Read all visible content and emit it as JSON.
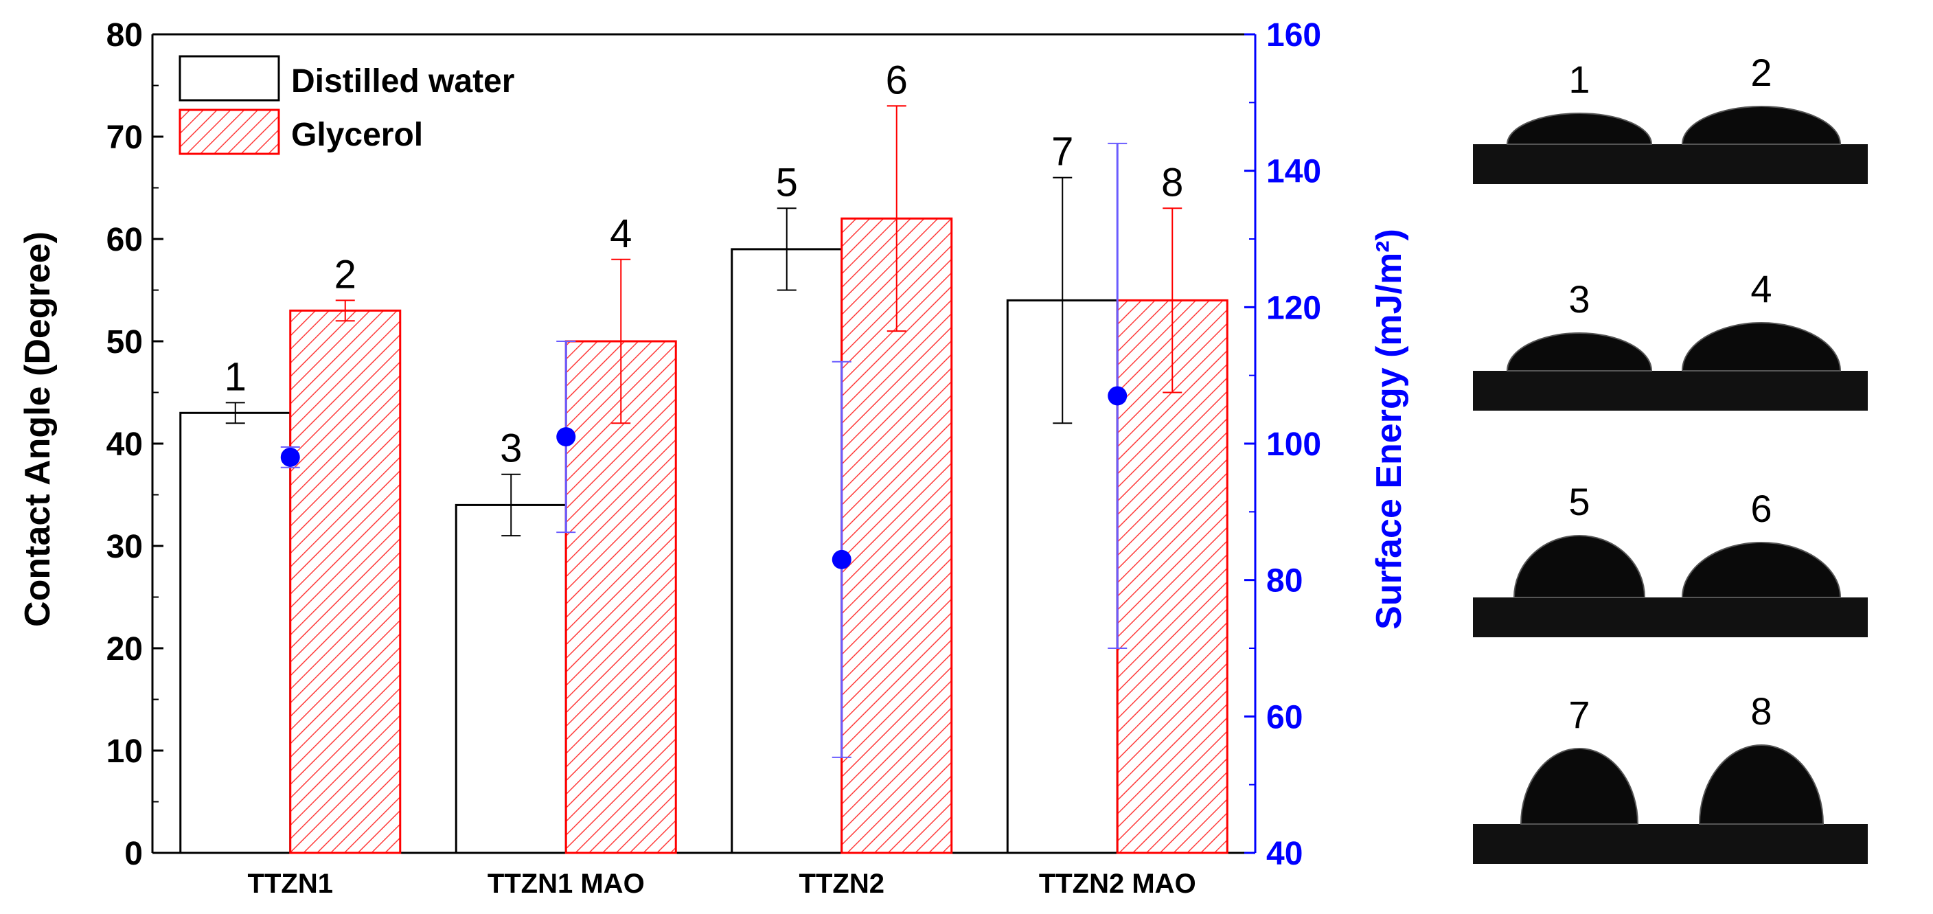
{
  "chart_data": {
    "type": "bar",
    "ylabel": "Contact Angle (Degree)",
    "y2label": "Surface Energy (mJ/m²)",
    "ylim": [
      0,
      80
    ],
    "y2lim": [
      40,
      160
    ],
    "yticks": [
      0,
      10,
      20,
      30,
      40,
      50,
      60,
      70,
      80
    ],
    "y2ticks": [
      40,
      60,
      80,
      100,
      120,
      140,
      160
    ],
    "categories": [
      "TTZN1",
      "TTZN1 MAO",
      "TTZN2",
      "TTZN2 MAO"
    ],
    "legend_position": "top-left",
    "series": [
      {
        "name": "Distilled water",
        "color": "#000000",
        "fill": "none",
        "values": [
          43,
          34,
          59,
          54
        ],
        "errors": [
          1,
          3,
          4,
          12
        ],
        "labels": [
          "1",
          "3",
          "5",
          "7"
        ]
      },
      {
        "name": "Glycerol",
        "color": "#ff0000",
        "fill": "hatched",
        "values": [
          53,
          50,
          62,
          54
        ],
        "errors": [
          1,
          8,
          11,
          9
        ],
        "labels": [
          "2",
          "4",
          "6",
          "8"
        ]
      }
    ],
    "surface_energy": {
      "axis": "right",
      "color": "#0000ff",
      "values": [
        98,
        101,
        83,
        107
      ],
      "errors": [
        1.5,
        14,
        29,
        37
      ]
    }
  },
  "droplet_images": {
    "rows": [
      {
        "left_label": "1",
        "right_label": "2"
      },
      {
        "left_label": "3",
        "right_label": "4"
      },
      {
        "left_label": "5",
        "right_label": "6"
      },
      {
        "left_label": "7",
        "right_label": "8"
      }
    ]
  },
  "colors": {
    "axis": "#000000",
    "right_axis": "#0000ff",
    "water": "#000000",
    "glycerol": "#ff0000",
    "surface_energy": "#0000ff"
  }
}
